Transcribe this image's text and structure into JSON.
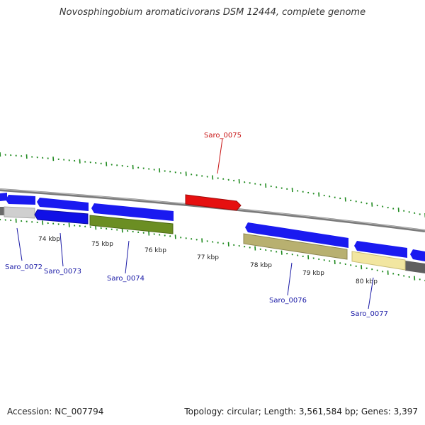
{
  "title": "Novosphingobium aromaticivorans DSM 12444, complete genome",
  "footer": {
    "accession": "Accession: NC_007794",
    "summary": "Topology: circular; Length: 3,561,584 bp; Genes: 3,397"
  },
  "colors": {
    "backbone": "#8a8a8a",
    "tick": "#1f8a1f",
    "label_blue": "#1a1aa6",
    "label_red": "#c81414"
  },
  "scale": {
    "unit": "kbp",
    "tick_labels": [
      "74 kbp",
      "75 kbp",
      "76 kbp",
      "77 kbp",
      "78 kbp",
      "79 kbp",
      "80 kbp"
    ]
  },
  "genes": [
    {
      "name": "Saro_0072",
      "label": "Saro_0072",
      "strand": "-",
      "color": "#cfcfcf",
      "label_color": "#1a1aa6"
    },
    {
      "name": "Saro_0073",
      "label": "Saro_0073",
      "strand": "-",
      "color": "#1010e6",
      "label_color": "#1a1aa6"
    },
    {
      "name": "Saro_0074",
      "label": "Saro_0074",
      "strand": "-",
      "color": "#6b8e23",
      "label_color": "#1a1aa6"
    },
    {
      "name": "Saro_0075",
      "label": "Saro_0075",
      "strand": "+",
      "color": "#e61010",
      "label_color": "#c81414"
    },
    {
      "name": "Saro_0076",
      "label": "Saro_0076",
      "strand": "-",
      "color": "#b8b070",
      "label_color": "#1a1aa6"
    },
    {
      "name": "Saro_0077",
      "label": "Saro_0077",
      "strand": "-",
      "color": "#f2e6a0",
      "label_color": "#1a1aa6"
    }
  ]
}
